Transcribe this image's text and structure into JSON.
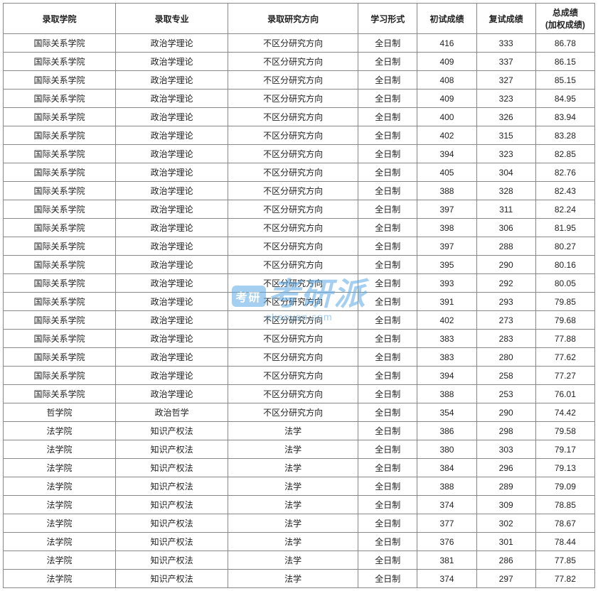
{
  "table": {
    "columns": [
      {
        "key": "col0",
        "label": "录取学院",
        "class": "col-0"
      },
      {
        "key": "col1",
        "label": "录取专业",
        "class": "col-1"
      },
      {
        "key": "col2",
        "label": "录取研究方向",
        "class": "col-2"
      },
      {
        "key": "col3",
        "label": "学习形式",
        "class": "col-3"
      },
      {
        "key": "col4",
        "label": "初试成绩",
        "class": "col-4"
      },
      {
        "key": "col5",
        "label": "复试成绩",
        "class": "col-5"
      },
      {
        "key": "col6",
        "label": "总成绩\n(加权成绩)",
        "class": "col-6"
      }
    ],
    "rows": [
      [
        "国际关系学院",
        "政治学理论",
        "不区分研究方向",
        "全日制",
        "416",
        "333",
        "86.78"
      ],
      [
        "国际关系学院",
        "政治学理论",
        "不区分研究方向",
        "全日制",
        "409",
        "337",
        "86.15"
      ],
      [
        "国际关系学院",
        "政治学理论",
        "不区分研究方向",
        "全日制",
        "408",
        "327",
        "85.15"
      ],
      [
        "国际关系学院",
        "政治学理论",
        "不区分研究方向",
        "全日制",
        "409",
        "323",
        "84.95"
      ],
      [
        "国际关系学院",
        "政治学理论",
        "不区分研究方向",
        "全日制",
        "400",
        "326",
        "83.94"
      ],
      [
        "国际关系学院",
        "政治学理论",
        "不区分研究方向",
        "全日制",
        "402",
        "315",
        "83.28"
      ],
      [
        "国际关系学院",
        "政治学理论",
        "不区分研究方向",
        "全日制",
        "394",
        "323",
        "82.85"
      ],
      [
        "国际关系学院",
        "政治学理论",
        "不区分研究方向",
        "全日制",
        "405",
        "304",
        "82.76"
      ],
      [
        "国际关系学院",
        "政治学理论",
        "不区分研究方向",
        "全日制",
        "388",
        "328",
        "82.43"
      ],
      [
        "国际关系学院",
        "政治学理论",
        "不区分研究方向",
        "全日制",
        "397",
        "311",
        "82.24"
      ],
      [
        "国际关系学院",
        "政治学理论",
        "不区分研究方向",
        "全日制",
        "398",
        "306",
        "81.95"
      ],
      [
        "国际关系学院",
        "政治学理论",
        "不区分研究方向",
        "全日制",
        "397",
        "288",
        "80.27"
      ],
      [
        "国际关系学院",
        "政治学理论",
        "不区分研究方向",
        "全日制",
        "395",
        "290",
        "80.16"
      ],
      [
        "国际关系学院",
        "政治学理论",
        "不区分研究方向",
        "全日制",
        "393",
        "292",
        "80.05"
      ],
      [
        "国际关系学院",
        "政治学理论",
        "不区分研究方向",
        "全日制",
        "391",
        "293",
        "79.85"
      ],
      [
        "国际关系学院",
        "政治学理论",
        "不区分研究方向",
        "全日制",
        "402",
        "273",
        "79.68"
      ],
      [
        "国际关系学院",
        "政治学理论",
        "不区分研究方向",
        "全日制",
        "383",
        "283",
        "77.88"
      ],
      [
        "国际关系学院",
        "政治学理论",
        "不区分研究方向",
        "全日制",
        "383",
        "280",
        "77.62"
      ],
      [
        "国际关系学院",
        "政治学理论",
        "不区分研究方向",
        "全日制",
        "394",
        "258",
        "77.27"
      ],
      [
        "国际关系学院",
        "政治学理论",
        "不区分研究方向",
        "全日制",
        "388",
        "253",
        "76.01"
      ],
      [
        "哲学院",
        "政治哲学",
        "不区分研究方向",
        "全日制",
        "354",
        "290",
        "74.42"
      ],
      [
        "法学院",
        "知识产权法",
        "法学",
        "全日制",
        "386",
        "298",
        "79.58"
      ],
      [
        "法学院",
        "知识产权法",
        "法学",
        "全日制",
        "380",
        "303",
        "79.17"
      ],
      [
        "法学院",
        "知识产权法",
        "法学",
        "全日制",
        "384",
        "296",
        "79.13"
      ],
      [
        "法学院",
        "知识产权法",
        "法学",
        "全日制",
        "388",
        "289",
        "79.09"
      ],
      [
        "法学院",
        "知识产权法",
        "法学",
        "全日制",
        "374",
        "309",
        "78.85"
      ],
      [
        "法学院",
        "知识产权法",
        "法学",
        "全日制",
        "377",
        "302",
        "78.67"
      ],
      [
        "法学院",
        "知识产权法",
        "法学",
        "全日制",
        "376",
        "301",
        "78.44"
      ],
      [
        "法学院",
        "知识产权法",
        "法学",
        "全日制",
        "381",
        "286",
        "77.85"
      ],
      [
        "法学院",
        "知识产权法",
        "法学",
        "全日制",
        "374",
        "297",
        "77.82"
      ]
    ],
    "border_color": "#888888",
    "text_color": "#222222",
    "font_size": 12,
    "header_font_weight": "bold"
  },
  "watermark": {
    "badge_text": "考研",
    "main_text": "考研派",
    "sub_text": "okaoyan.com",
    "color": "#5aa9e6"
  }
}
